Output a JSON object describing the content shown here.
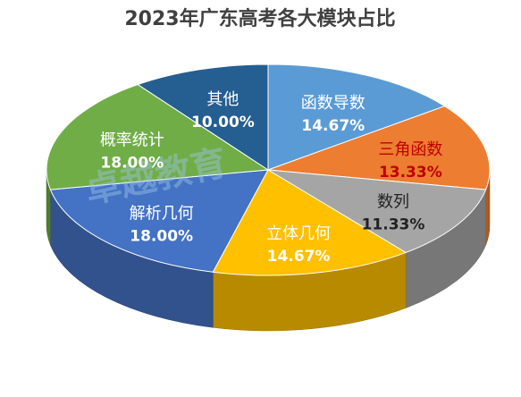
{
  "chart_data": {
    "type": "pie",
    "title": "2023年广东高考各大模块占比",
    "categories": [
      "函数导数",
      "三角函数",
      "数列",
      "立体几何",
      "解析几何",
      "概率统计",
      "其他"
    ],
    "values": [
      14.67,
      13.33,
      11.33,
      14.67,
      18.0,
      18.0,
      10.0
    ],
    "value_labels": [
      "14.67%",
      "13.33%",
      "11.33%",
      "14.67%",
      "18.00%",
      "18.00%",
      "10.00%"
    ],
    "colors": [
      "#5b9bd5",
      "#ed7d31",
      "#a5a5a5",
      "#ffc000",
      "#4472c4",
      "#70ad47",
      "#255e91"
    ],
    "label_colors": [
      "#ffffff",
      "#c00000",
      "#222222",
      "#ffffff",
      "#ffffff",
      "#ffffff",
      "#ffffff"
    ],
    "watermark": "卓越教育"
  }
}
